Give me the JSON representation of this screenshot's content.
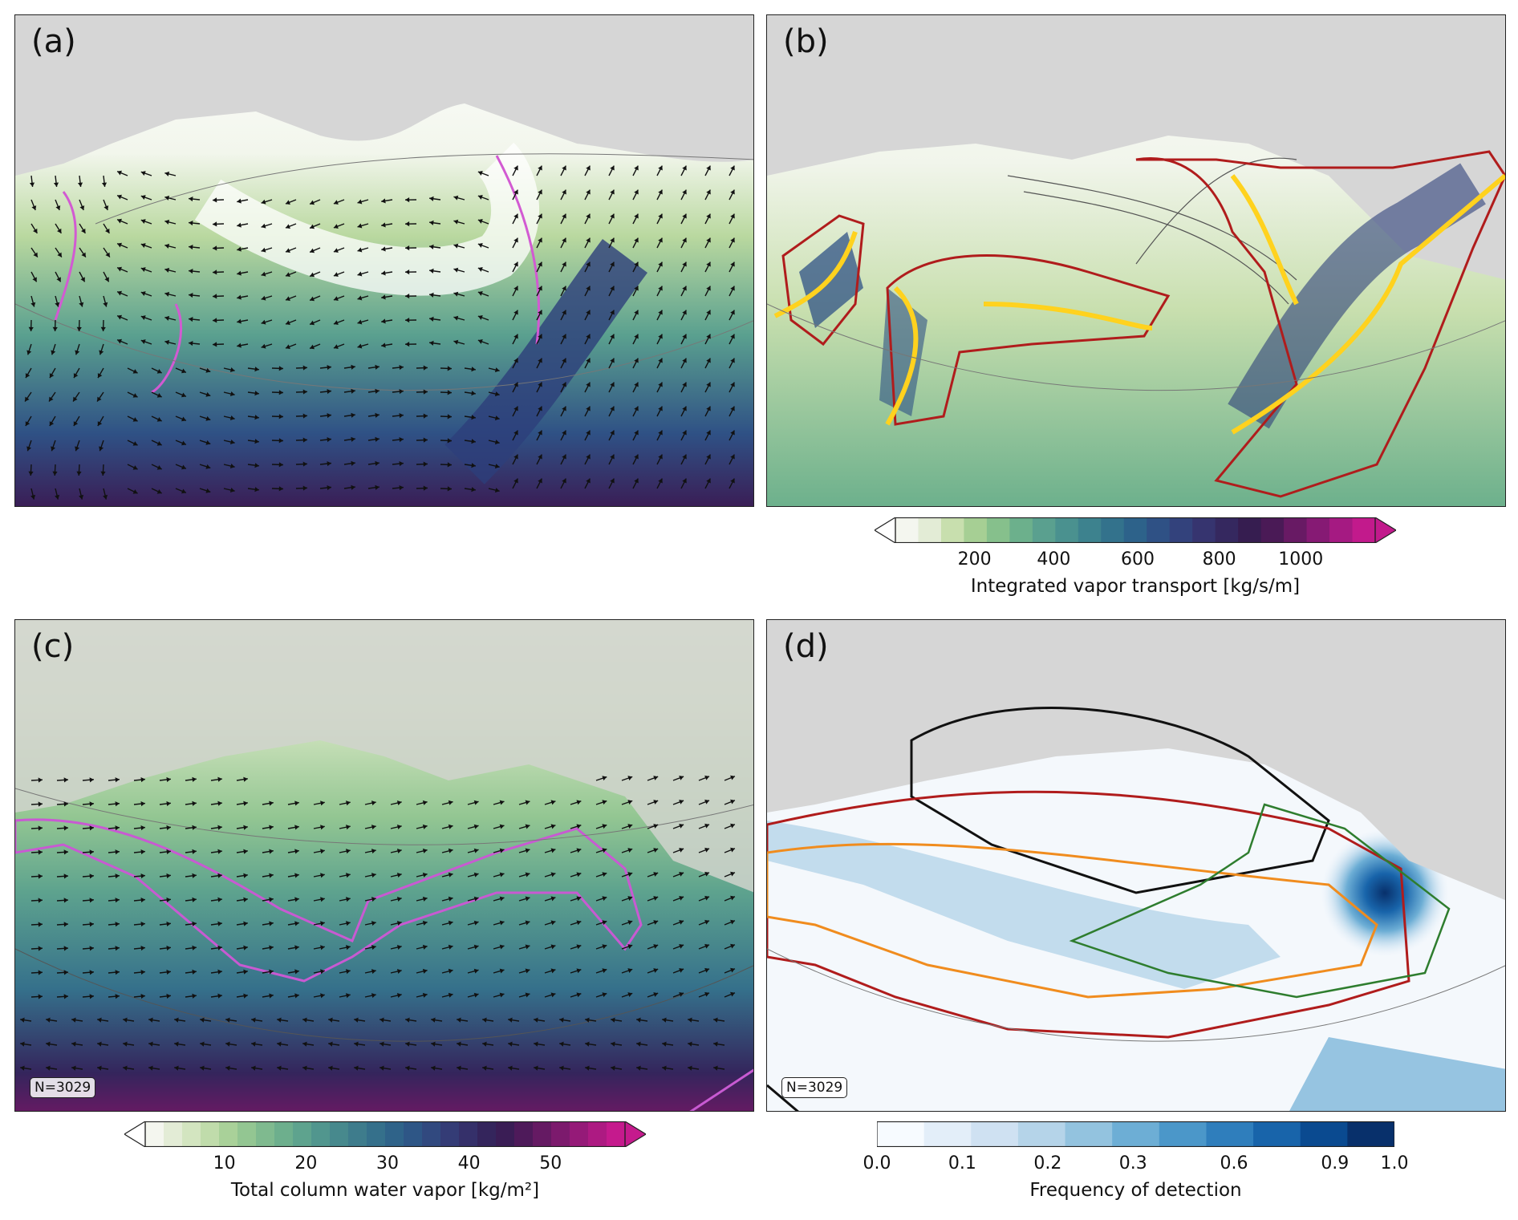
{
  "panels": {
    "a": {
      "label": "(a)"
    },
    "b": {
      "label": "(b)"
    },
    "c": {
      "label": "(c)",
      "n_label": "N=3029"
    },
    "d": {
      "label": "(d)",
      "n_label": "N=3029"
    }
  },
  "colorbars": {
    "ivt": {
      "title": "Integrated vapor transport [kg/s/m]",
      "ticks": [
        "200",
        "400",
        "600",
        "800",
        "1000"
      ],
      "extend": "both",
      "colors": [
        "#f4f6ef",
        "#e3ecd6",
        "#c8dfae",
        "#a6cf94",
        "#86c08c",
        "#6cb08c",
        "#5aa08f",
        "#4a918f",
        "#3d828e",
        "#33728c",
        "#2d628a",
        "#2f5185",
        "#33427c",
        "#36346f",
        "#35285f",
        "#361d50",
        "#4a1a56",
        "#681a64",
        "#861a74",
        "#a51a82",
        "#c21a8c"
      ]
    },
    "tcwv": {
      "title": "Total column water vapor [kg/m²]",
      "ticks": [
        "10",
        "20",
        "30",
        "40",
        "50"
      ],
      "extend": "both",
      "colors": [
        "#f4f6ef",
        "#e3ecd6",
        "#d3e5c0",
        "#c0dcab",
        "#a9d199",
        "#93c692",
        "#7fba8f",
        "#6daf8d",
        "#5ea38e",
        "#51968e",
        "#47898d",
        "#3e7c8c",
        "#35708b",
        "#2f6389",
        "#2e5686",
        "#31497f",
        "#343c76",
        "#35306a",
        "#34255c",
        "#3a1d55",
        "#4e1a5a",
        "#651a63",
        "#7c1a6d",
        "#951a78",
        "#ad1a82",
        "#c51a8d"
      ]
    },
    "freq": {
      "title": "Frequency of detection",
      "ticks": [
        "0.0",
        "0.1",
        "0.2",
        "0.3",
        "0.6",
        "0.9",
        "1.0"
      ],
      "colors": [
        "#f7fbff",
        "#e3eef9",
        "#cfe1f2",
        "#b5d4e9",
        "#93c3df",
        "#6daed5",
        "#4b97c9",
        "#2f7ebc",
        "#1864aa",
        "#0a4a90",
        "#08306b"
      ]
    }
  }
}
